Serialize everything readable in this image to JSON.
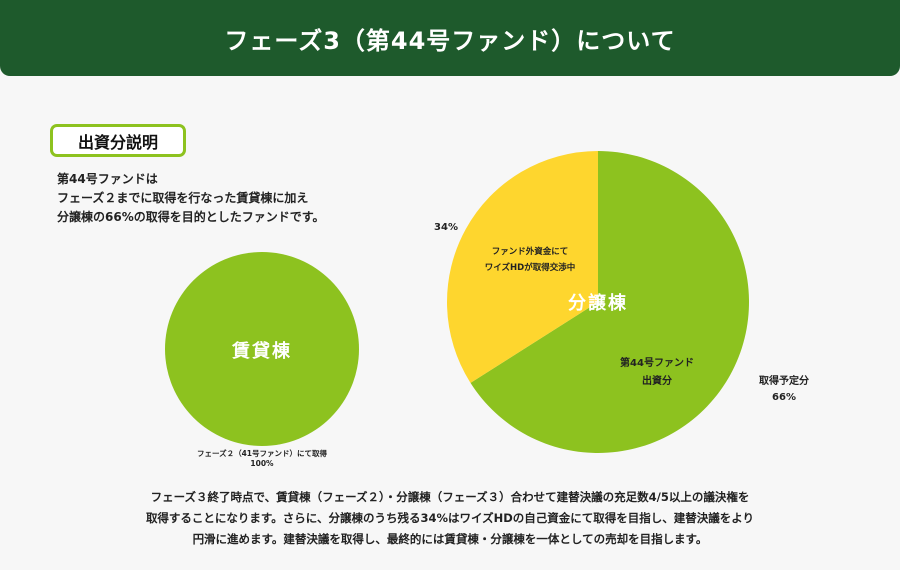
{
  "header": {
    "title": "フェーズ3（第44号ファンド）について"
  },
  "section": {
    "badge": "出資分説明"
  },
  "intro": {
    "lines": [
      "第44号ファンドは",
      "フェーズ２までに取得を行なった賃貸棟に加え",
      "分譲棟の66%の取得を目的としたファンドです。"
    ]
  },
  "colors": {
    "header_bg": "#1e5a2c",
    "green": "#8dc21f",
    "yellow": "#fed62e",
    "badge_border": "#8dc21f"
  },
  "chart_data": [
    {
      "type": "pie",
      "title": "賃貸棟",
      "slices": [
        {
          "label": "フェーズ２（41号ファンド）にて取得",
          "percent_label": "100%",
          "value": 100,
          "color": "#8dc21f"
        }
      ]
    },
    {
      "type": "pie",
      "title": "分譲棟",
      "slices": [
        {
          "label_lines": [
            "第44号ファンド",
            "出資分"
          ],
          "outer_label_lines": [
            "取得予定分",
            "66%"
          ],
          "value": 66,
          "color": "#8dc21f"
        },
        {
          "label_lines": [
            "ファンド外資金にて",
            "ワイズHDが取得交渉中"
          ],
          "outer_label_lines": [
            "34%"
          ],
          "value": 34,
          "color": "#fed62e"
        }
      ]
    }
  ],
  "footer": {
    "lines": [
      "フェーズ３終了時点で、賃貸棟（フェーズ２）・分譲棟（フェーズ３）合わせて建替決議の充足数4/5以上の議決権を",
      "取得することになります。さらに、分譲棟のうち残る34%はワイズHDの自己資金にて取得を目指し、建替決議をより",
      "円滑に進めます。建替決議を取得し、最終的には賃貸棟・分譲棟を一体としての売却を目指します。"
    ]
  }
}
